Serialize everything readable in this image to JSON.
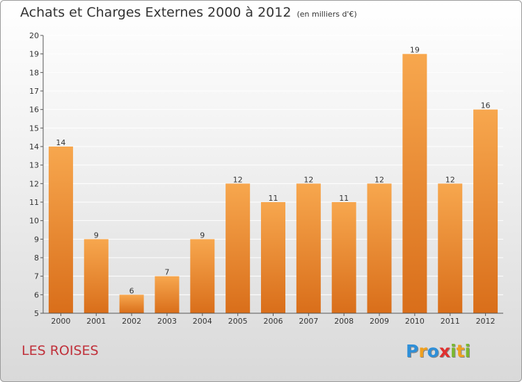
{
  "header": {
    "title": "Achats et Charges Externes 2000 à 2012",
    "unit": "(en milliers d'€)"
  },
  "footer": {
    "location": "LES ROISES",
    "brand_letters": [
      "P",
      "r",
      "o",
      "x",
      "i",
      "t",
      "i"
    ],
    "brand_colors": [
      "#2e8fd8",
      "#f0a01e",
      "#2e8fd8",
      "#e0302e",
      "#7ab830",
      "#f0a01e",
      "#7ab830"
    ]
  },
  "colors": {
    "bar_top": "#f7a74e",
    "bar_bottom": "#d96e1a",
    "axis": "#555555",
    "grid": "#ffffff"
  },
  "chart_data": {
    "type": "bar",
    "title": "Achats et Charges Externes 2000 à 2012",
    "subtitle": "(en milliers d'€)",
    "xlabel": "",
    "ylabel": "",
    "categories": [
      "2000",
      "2001",
      "2002",
      "2003",
      "2004",
      "2005",
      "2006",
      "2007",
      "2008",
      "2009",
      "2010",
      "2011",
      "2012"
    ],
    "values": [
      14,
      9,
      6,
      7,
      9,
      12,
      11,
      12,
      11,
      12,
      19,
      12,
      16
    ],
    "ylim": [
      5,
      20
    ],
    "yticks": [
      5,
      6,
      7,
      8,
      9,
      10,
      11,
      12,
      13,
      14,
      15,
      16,
      17,
      18,
      19,
      20
    ],
    "grid": true,
    "legend": "none"
  }
}
